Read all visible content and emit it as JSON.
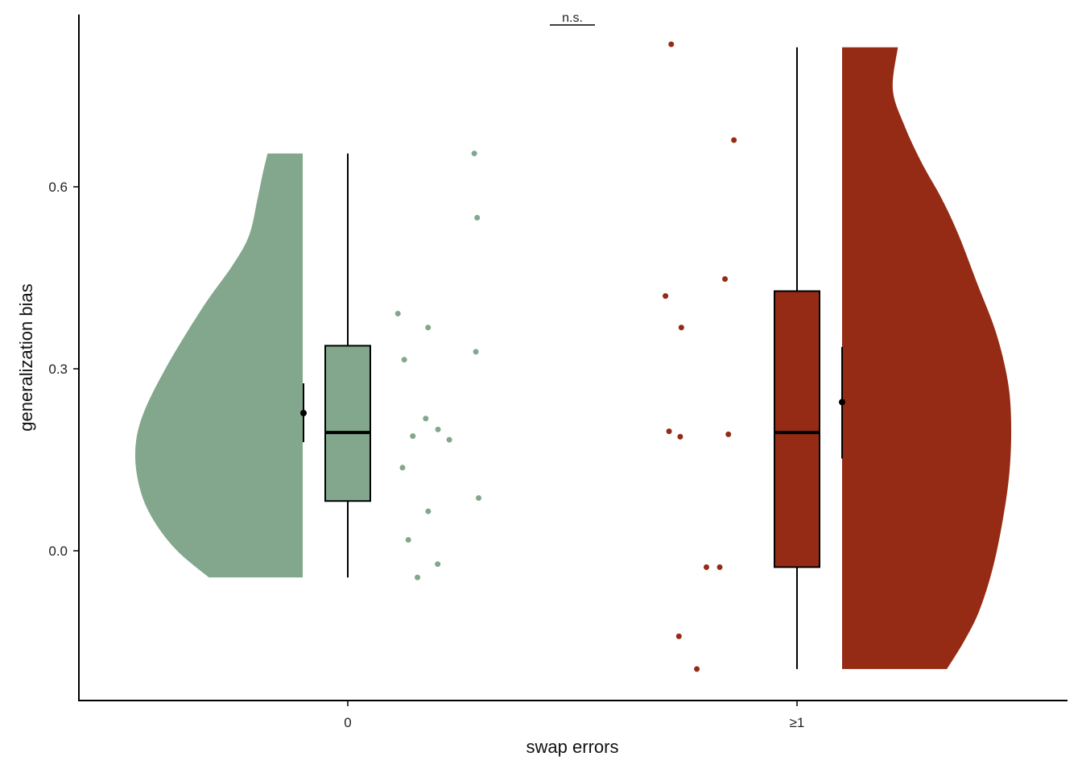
{
  "chart_data": {
    "type": "raincloud",
    "xlabel": "swap errors",
    "ylabel": "generalization bias",
    "ylim": [
      -0.24,
      0.88
    ],
    "yticks": [
      0.0,
      0.3,
      0.6
    ],
    "ytick_labels": [
      "0.0",
      "0.3",
      "0.6"
    ],
    "grid": false,
    "annotation": "n.s.",
    "groups": [
      {
        "category": "0",
        "color": "#82a78c",
        "box": {
          "min": -0.044,
          "q1": 0.082,
          "median": 0.195,
          "q3": 0.338,
          "max": 0.655
        },
        "mean": 0.227,
        "mean_ci": [
          0.179,
          0.276
        ],
        "points": [
          0.655,
          0.549,
          0.391,
          0.368,
          0.328,
          0.315,
          0.218,
          0.2,
          0.183,
          0.189,
          0.137,
          0.087,
          0.065,
          0.018,
          -0.022,
          -0.044
        ],
        "density": [
          [
            -0.044,
            0.56
          ],
          [
            0.0,
            0.75
          ],
          [
            0.05,
            0.89
          ],
          [
            0.1,
            0.97
          ],
          [
            0.16,
            1.0
          ],
          [
            0.22,
            0.96
          ],
          [
            0.3,
            0.82
          ],
          [
            0.4,
            0.6
          ],
          [
            0.47,
            0.42
          ],
          [
            0.52,
            0.32
          ],
          [
            0.58,
            0.27
          ],
          [
            0.62,
            0.24
          ],
          [
            0.655,
            0.21
          ]
        ]
      },
      {
        "category": "≥1",
        "color": "#952b15",
        "box": {
          "min": -0.195,
          "q1": -0.027,
          "median": 0.195,
          "q3": 0.428,
          "max": 0.83
        },
        "mean": 0.245,
        "mean_ci": [
          0.152,
          0.336
        ],
        "points": [
          0.835,
          0.677,
          0.448,
          0.42,
          0.368,
          0.197,
          0.192,
          0.188,
          -0.027,
          -0.027,
          -0.141,
          -0.195
        ],
        "density": [
          [
            -0.195,
            0.62
          ],
          [
            -0.15,
            0.72
          ],
          [
            -0.1,
            0.81
          ],
          [
            -0.03,
            0.89
          ],
          [
            0.05,
            0.95
          ],
          [
            0.13,
            0.99
          ],
          [
            0.21,
            1.0
          ],
          [
            0.28,
            0.98
          ],
          [
            0.36,
            0.91
          ],
          [
            0.44,
            0.8
          ],
          [
            0.52,
            0.69
          ],
          [
            0.58,
            0.59
          ],
          [
            0.64,
            0.47
          ],
          [
            0.7,
            0.37
          ],
          [
            0.76,
            0.3
          ],
          [
            0.83,
            0.33
          ]
        ]
      }
    ]
  }
}
